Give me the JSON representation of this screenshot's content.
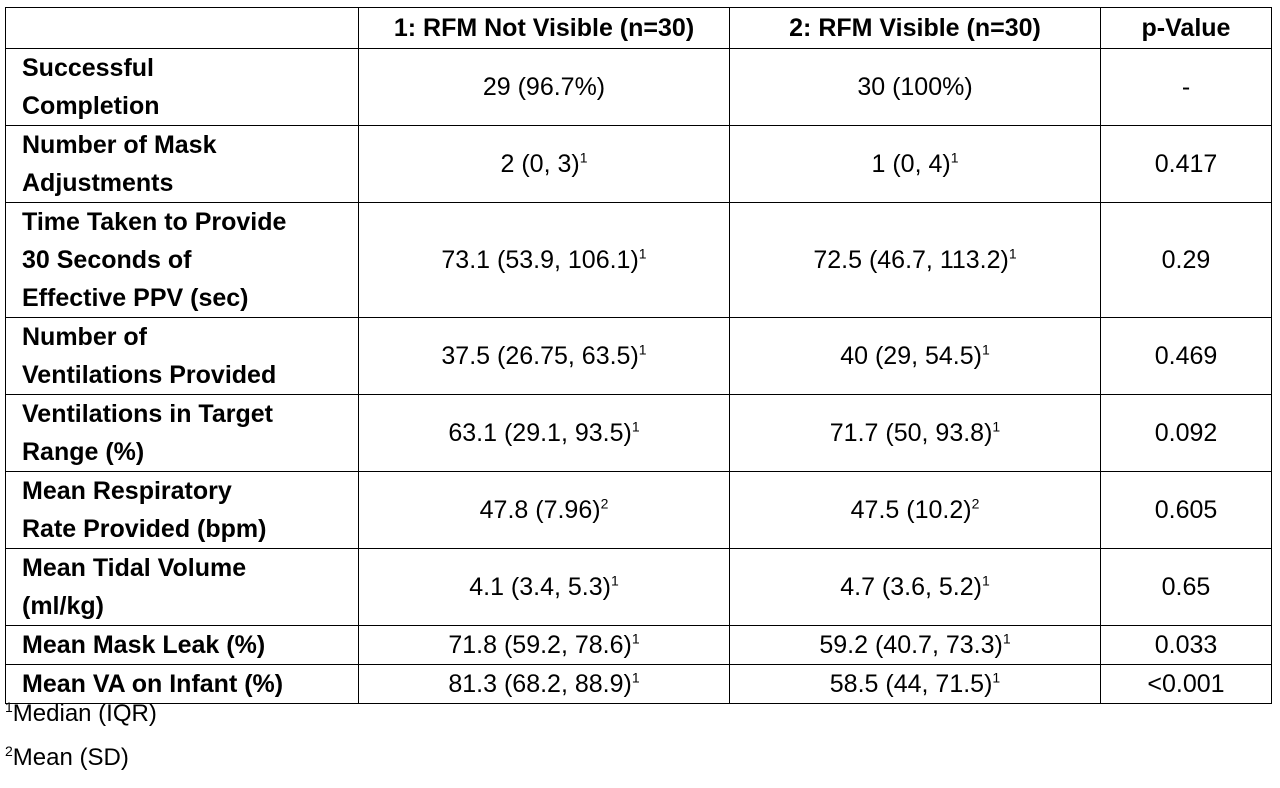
{
  "table": {
    "headers": {
      "label": "",
      "group1": "1: RFM Not Visible (n=30)",
      "group2": "2: RFM Visible (n=30)",
      "pvalue": "p-Value"
    },
    "rows": [
      {
        "label_lines": [
          "Successful",
          "Completion"
        ],
        "group1": "29 (96.7%)",
        "group1_note": "",
        "group2": "30 (100%)",
        "group2_note": "",
        "pvalue": "-"
      },
      {
        "label_lines": [
          "Number of Mask",
          "Adjustments"
        ],
        "group1": "2 (0, 3)",
        "group1_note": "1",
        "group2": "1 (0, 4)",
        "group2_note": "1",
        "pvalue": "0.417"
      },
      {
        "label_lines": [
          "Time Taken to Provide",
          "30 Seconds of",
          "Effective PPV (sec)"
        ],
        "group1": "73.1 (53.9, 106.1)",
        "group1_note": "1",
        "group2": "72.5 (46.7, 113.2)",
        "group2_note": "1",
        "pvalue": "0.29"
      },
      {
        "label_lines": [
          "Number of",
          "Ventilations Provided"
        ],
        "group1": "37.5 (26.75, 63.5)",
        "group1_note": "1",
        "group2": "40 (29, 54.5)",
        "group2_note": "1",
        "pvalue": "0.469"
      },
      {
        "label_lines": [
          "Ventilations in Target",
          "Range (%)"
        ],
        "group1": "63.1 (29.1, 93.5)",
        "group1_note": "1",
        "group2": "71.7 (50, 93.8)",
        "group2_note": "1",
        "pvalue": "0.092"
      },
      {
        "label_lines": [
          "Mean Respiratory",
          "Rate Provided (bpm)"
        ],
        "group1": "47.8 (7.96)",
        "group1_note": "2",
        "group2": "47.5 (10.2)",
        "group2_note": "2",
        "pvalue": "0.605"
      },
      {
        "label_lines": [
          "Mean Tidal Volume",
          "(ml/kg)"
        ],
        "group1": "4.1 (3.4, 5.3)",
        "group1_note": "1",
        "group2": "4.7 (3.6, 5.2)",
        "group2_note": "1",
        "pvalue": "0.65"
      },
      {
        "label_lines": [
          "Mean Mask Leak (%)"
        ],
        "group1": "71.8 (59.2, 78.6)",
        "group1_note": "1",
        "group2": "59.2 (40.7, 73.3)",
        "group2_note": "1",
        "pvalue": "0.033"
      },
      {
        "label_lines": [
          "Mean VA on Infant (%)"
        ],
        "group1": "81.3 (68.2, 88.9)",
        "group1_note": "1",
        "group2": "58.5 (44, 71.5)",
        "group2_note": "1",
        "pvalue": "<0.001"
      }
    ]
  },
  "footnotes": [
    {
      "mark": "1",
      "text": "Median (IQR)"
    },
    {
      "mark": "2",
      "text": "Mean (SD)"
    }
  ]
}
